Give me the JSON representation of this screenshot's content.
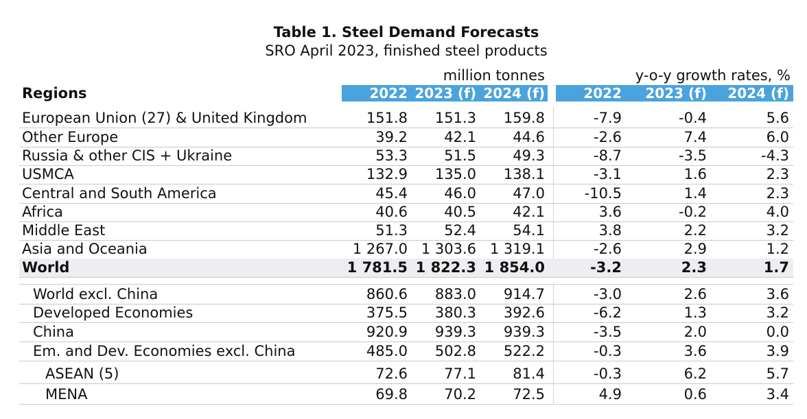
{
  "title": "Table 1. Steel Demand Forecasts",
  "subtitle": "SRO April 2023, finished steel products",
  "unit_left": "million tonnes",
  "unit_right": "y-o-y growth rates, %",
  "regions_label": "Regions",
  "headers": [
    "2022",
    "2023 (f)",
    "2024 (f)",
    "2022",
    "2023 (f)",
    "2024 (f)"
  ],
  "rows": [
    {
      "label": "European Union (27) & United Kingdom",
      "values": [
        "151.8",
        "151.3",
        "159.8",
        "-7.9",
        "-0.4",
        "5.6"
      ]
    },
    {
      "label": "Other Europe",
      "values": [
        "39.2",
        "42.1",
        "44.6",
        "-2.6",
        "7.4",
        "6.0"
      ]
    },
    {
      "label": "Russia & other CIS + Ukraine",
      "values": [
        "53.3",
        "51.5",
        "49.3",
        "-8.7",
        "-3.5",
        "-4.3"
      ]
    },
    {
      "label": "USMCA",
      "values": [
        "132.9",
        "135.0",
        "138.1",
        "-3.1",
        "1.6",
        "2.3"
      ]
    },
    {
      "label": "Central and South America",
      "values": [
        "45.4",
        "46.0",
        "47.0",
        "-10.5",
        "1.4",
        "2.3"
      ]
    },
    {
      "label": "Africa",
      "values": [
        "40.6",
        "40.5",
        "42.1",
        "3.6",
        "-0.2",
        "4.0"
      ]
    },
    {
      "label": "Middle East",
      "values": [
        "51.3",
        "52.4",
        "54.1",
        "3.8",
        "2.2",
        "3.2"
      ]
    },
    {
      "label": "Asia and Oceania",
      "values": [
        "1 267.0",
        "1 303.6",
        "1 319.1",
        "-2.6",
        "2.9",
        "1.2"
      ]
    },
    {
      "label": "World",
      "values": [
        "1 781.5",
        "1 822.3",
        "1 854.0",
        "-3.2",
        "2.3",
        "1.7"
      ]
    },
    {
      "label": "World excl. China",
      "values": [
        "860.6",
        "883.0",
        "914.7",
        "-3.0",
        "2.6",
        "3.6"
      ]
    },
    {
      "label": "Developed Economies",
      "values": [
        "375.5",
        "380.3",
        "392.6",
        "-6.2",
        "1.3",
        "3.2"
      ]
    },
    {
      "label": "China",
      "values": [
        "920.9",
        "939.3",
        "939.3",
        "-3.5",
        "2.0",
        "0.0"
      ]
    },
    {
      "label": "Em. and Dev. Economies excl. China",
      "values": [
        "485.0",
        "502.8",
        "522.2",
        "-0.3",
        "3.6",
        "3.9"
      ]
    },
    {
      "label": "ASEAN (5)",
      "values": [
        "72.6",
        "77.1",
        "81.4",
        "-0.3",
        "6.2",
        "5.7"
      ]
    },
    {
      "label": "MENA",
      "values": [
        "69.8",
        "70.2",
        "72.5",
        "4.9",
        "0.6",
        "3.4"
      ]
    }
  ]
}
